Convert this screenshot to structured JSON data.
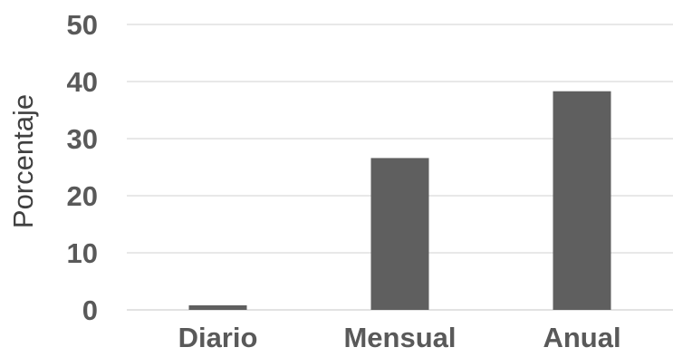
{
  "chart_data": {
    "type": "bar",
    "categories": [
      "Diario",
      "Mensual",
      "Anual"
    ],
    "values": [
      0.8,
      26.6,
      38.3
    ],
    "ylabel": "Porcentaje",
    "xlabel": "",
    "ylim": [
      0,
      50
    ],
    "yticks": [
      0,
      10,
      20,
      30,
      40,
      50
    ],
    "ytick_labels": [
      "0",
      "10",
      "20",
      "30",
      "40",
      "50"
    ],
    "grid": true,
    "legend": "none",
    "colors": {
      "bar": "#5f5f5f",
      "grid": "#d9d9d9",
      "text": "#595959"
    }
  }
}
